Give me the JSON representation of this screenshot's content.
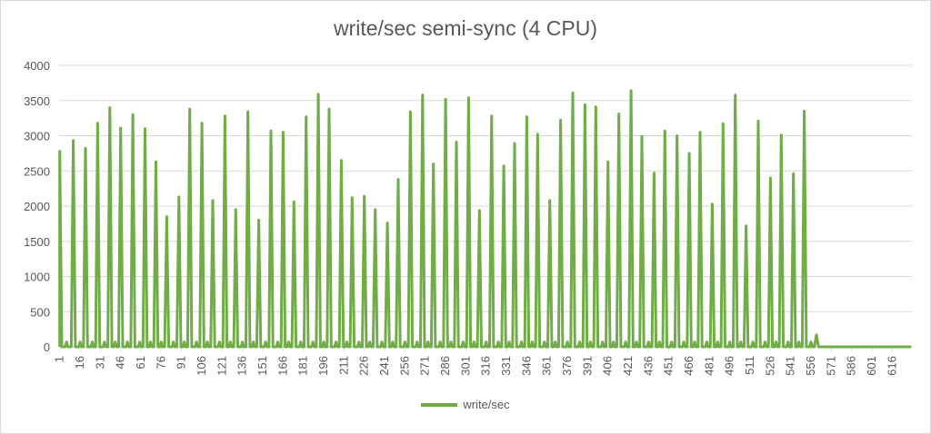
{
  "chart_data": {
    "type": "line",
    "title": "write/sec semi-sync (4 CPU)",
    "xlabel": "",
    "ylabel": "",
    "ylim": [
      0,
      4000
    ],
    "yticks": [
      0,
      500,
      1000,
      1500,
      2000,
      2500,
      3000,
      3500,
      4000
    ],
    "xlim": [
      1,
      630
    ],
    "xticks": [
      1,
      16,
      31,
      46,
      61,
      76,
      91,
      106,
      121,
      136,
      151,
      166,
      181,
      196,
      211,
      226,
      241,
      256,
      271,
      286,
      301,
      316,
      331,
      346,
      361,
      376,
      391,
      406,
      421,
      436,
      451,
      466,
      481,
      496,
      511,
      526,
      541,
      556,
      571,
      586,
      601,
      616
    ],
    "grid": true,
    "legend": "bottom",
    "series": [
      {
        "name": "write/sec",
        "color": "#70AD47",
        "peaks": [
          {
            "x": 1,
            "y": 2780
          },
          {
            "x": 11,
            "y": 2930
          },
          {
            "x": 20,
            "y": 2820
          },
          {
            "x": 29,
            "y": 3180
          },
          {
            "x": 38,
            "y": 3400
          },
          {
            "x": 46,
            "y": 3110
          },
          {
            "x": 55,
            "y": 3300
          },
          {
            "x": 64,
            "y": 3100
          },
          {
            "x": 72,
            "y": 2630
          },
          {
            "x": 80,
            "y": 1850
          },
          {
            "x": 89,
            "y": 2130
          },
          {
            "x": 97,
            "y": 3380
          },
          {
            "x": 106,
            "y": 3180
          },
          {
            "x": 114,
            "y": 2080
          },
          {
            "x": 123,
            "y": 3280
          },
          {
            "x": 131,
            "y": 1950
          },
          {
            "x": 140,
            "y": 3340
          },
          {
            "x": 148,
            "y": 1800
          },
          {
            "x": 157,
            "y": 3070
          },
          {
            "x": 166,
            "y": 3050
          },
          {
            "x": 174,
            "y": 2060
          },
          {
            "x": 183,
            "y": 3270
          },
          {
            "x": 192,
            "y": 3590
          },
          {
            "x": 200,
            "y": 3380
          },
          {
            "x": 209,
            "y": 2650
          },
          {
            "x": 217,
            "y": 2120
          },
          {
            "x": 226,
            "y": 2140
          },
          {
            "x": 234,
            "y": 1950
          },
          {
            "x": 243,
            "y": 1760
          },
          {
            "x": 251,
            "y": 2380
          },
          {
            "x": 260,
            "y": 3340
          },
          {
            "x": 269,
            "y": 3580
          },
          {
            "x": 277,
            "y": 2600
          },
          {
            "x": 286,
            "y": 3520
          },
          {
            "x": 294,
            "y": 2910
          },
          {
            "x": 303,
            "y": 3540
          },
          {
            "x": 311,
            "y": 1940
          },
          {
            "x": 320,
            "y": 3280
          },
          {
            "x": 329,
            "y": 2570
          },
          {
            "x": 337,
            "y": 2890
          },
          {
            "x": 346,
            "y": 3270
          },
          {
            "x": 354,
            "y": 3020
          },
          {
            "x": 363,
            "y": 2080
          },
          {
            "x": 371,
            "y": 3220
          },
          {
            "x": 380,
            "y": 3610
          },
          {
            "x": 389,
            "y": 3440
          },
          {
            "x": 397,
            "y": 3410
          },
          {
            "x": 406,
            "y": 2630
          },
          {
            "x": 414,
            "y": 3310
          },
          {
            "x": 423,
            "y": 3640
          },
          {
            "x": 431,
            "y": 2990
          },
          {
            "x": 440,
            "y": 2470
          },
          {
            "x": 448,
            "y": 3070
          },
          {
            "x": 457,
            "y": 3000
          },
          {
            "x": 466,
            "y": 2750
          },
          {
            "x": 474,
            "y": 3050
          },
          {
            "x": 483,
            "y": 2030
          },
          {
            "x": 491,
            "y": 3170
          },
          {
            "x": 500,
            "y": 3580
          },
          {
            "x": 508,
            "y": 1720
          },
          {
            "x": 517,
            "y": 3210
          },
          {
            "x": 526,
            "y": 2400
          },
          {
            "x": 534,
            "y": 3010
          },
          {
            "x": 543,
            "y": 2460
          },
          {
            "x": 551,
            "y": 3350
          },
          {
            "x": 560,
            "y": 170
          }
        ],
        "baseline_after": 565
      }
    ]
  }
}
